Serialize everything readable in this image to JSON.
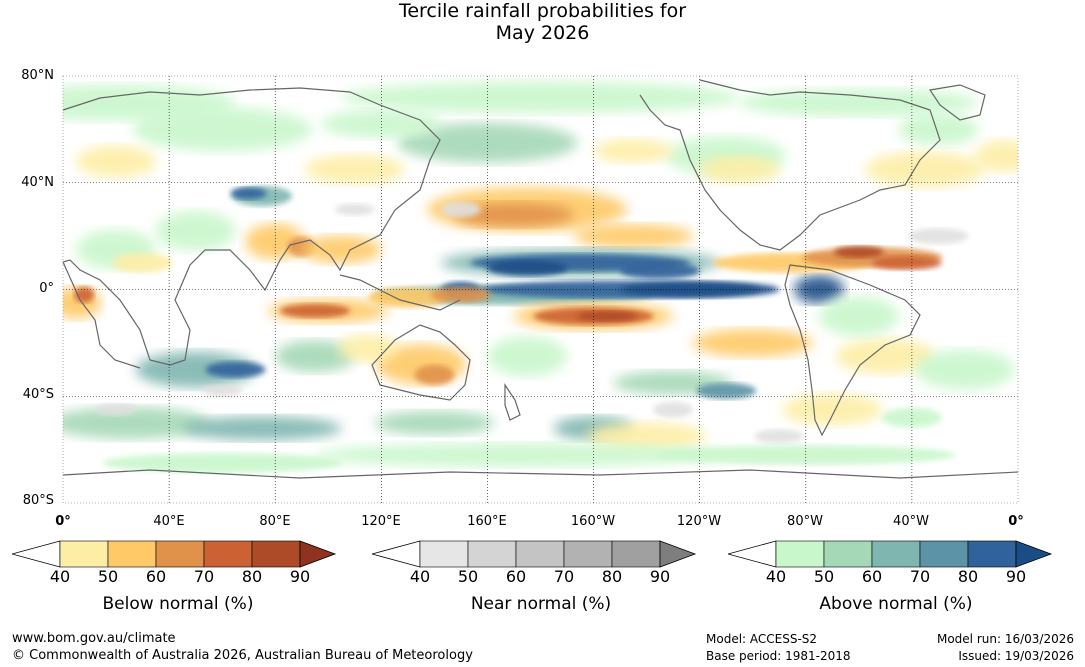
{
  "title": {
    "line1": "Tercile rainfall probabilities for",
    "line2": "May 2026"
  },
  "map": {
    "lat_labels": [
      "80°N",
      "40°N",
      "0°",
      "40°S",
      "80°S"
    ],
    "lon_labels": [
      "0°",
      "40°E",
      "80°E",
      "120°E",
      "160°E",
      "160°W",
      "120°W",
      "80°W",
      "40°W",
      "0°"
    ],
    "grid": true
  },
  "legends": [
    {
      "id": "below",
      "title": "Below normal (%)",
      "ticks": [
        "40",
        "50",
        "60",
        "70",
        "80",
        "90"
      ],
      "colors": [
        "#ffffff",
        "#fdeea6",
        "#fec966",
        "#e0924b",
        "#cc6233",
        "#ad4a28",
        "#8f3320"
      ]
    },
    {
      "id": "near",
      "title": "Near normal (%)",
      "ticks": [
        "40",
        "50",
        "60",
        "70",
        "80",
        "90"
      ],
      "colors": [
        "#ffffff",
        "#e6e6e6",
        "#d4d4d4",
        "#c4c4c4",
        "#b2b2b2",
        "#a0a0a0",
        "#7e7e7e"
      ]
    },
    {
      "id": "above",
      "title": "Above normal (%)",
      "ticks": [
        "40",
        "50",
        "60",
        "70",
        "80",
        "90"
      ],
      "colors": [
        "#ffffff",
        "#c9f7cc",
        "#a5d8b7",
        "#7fb6b0",
        "#5c93a6",
        "#30629b",
        "#1a4d86"
      ]
    }
  ],
  "footer": {
    "url": "www.bom.gov.au/climate",
    "copyright": "© Commonwealth of Australia 2026, Australian Bureau of Meteorology",
    "model": "Model: ACCESS-S2",
    "base_period": "Base period: 1981-2018",
    "model_run": "Model run: 16/03/2026",
    "issued": "Issued: 19/03/2026"
  }
}
